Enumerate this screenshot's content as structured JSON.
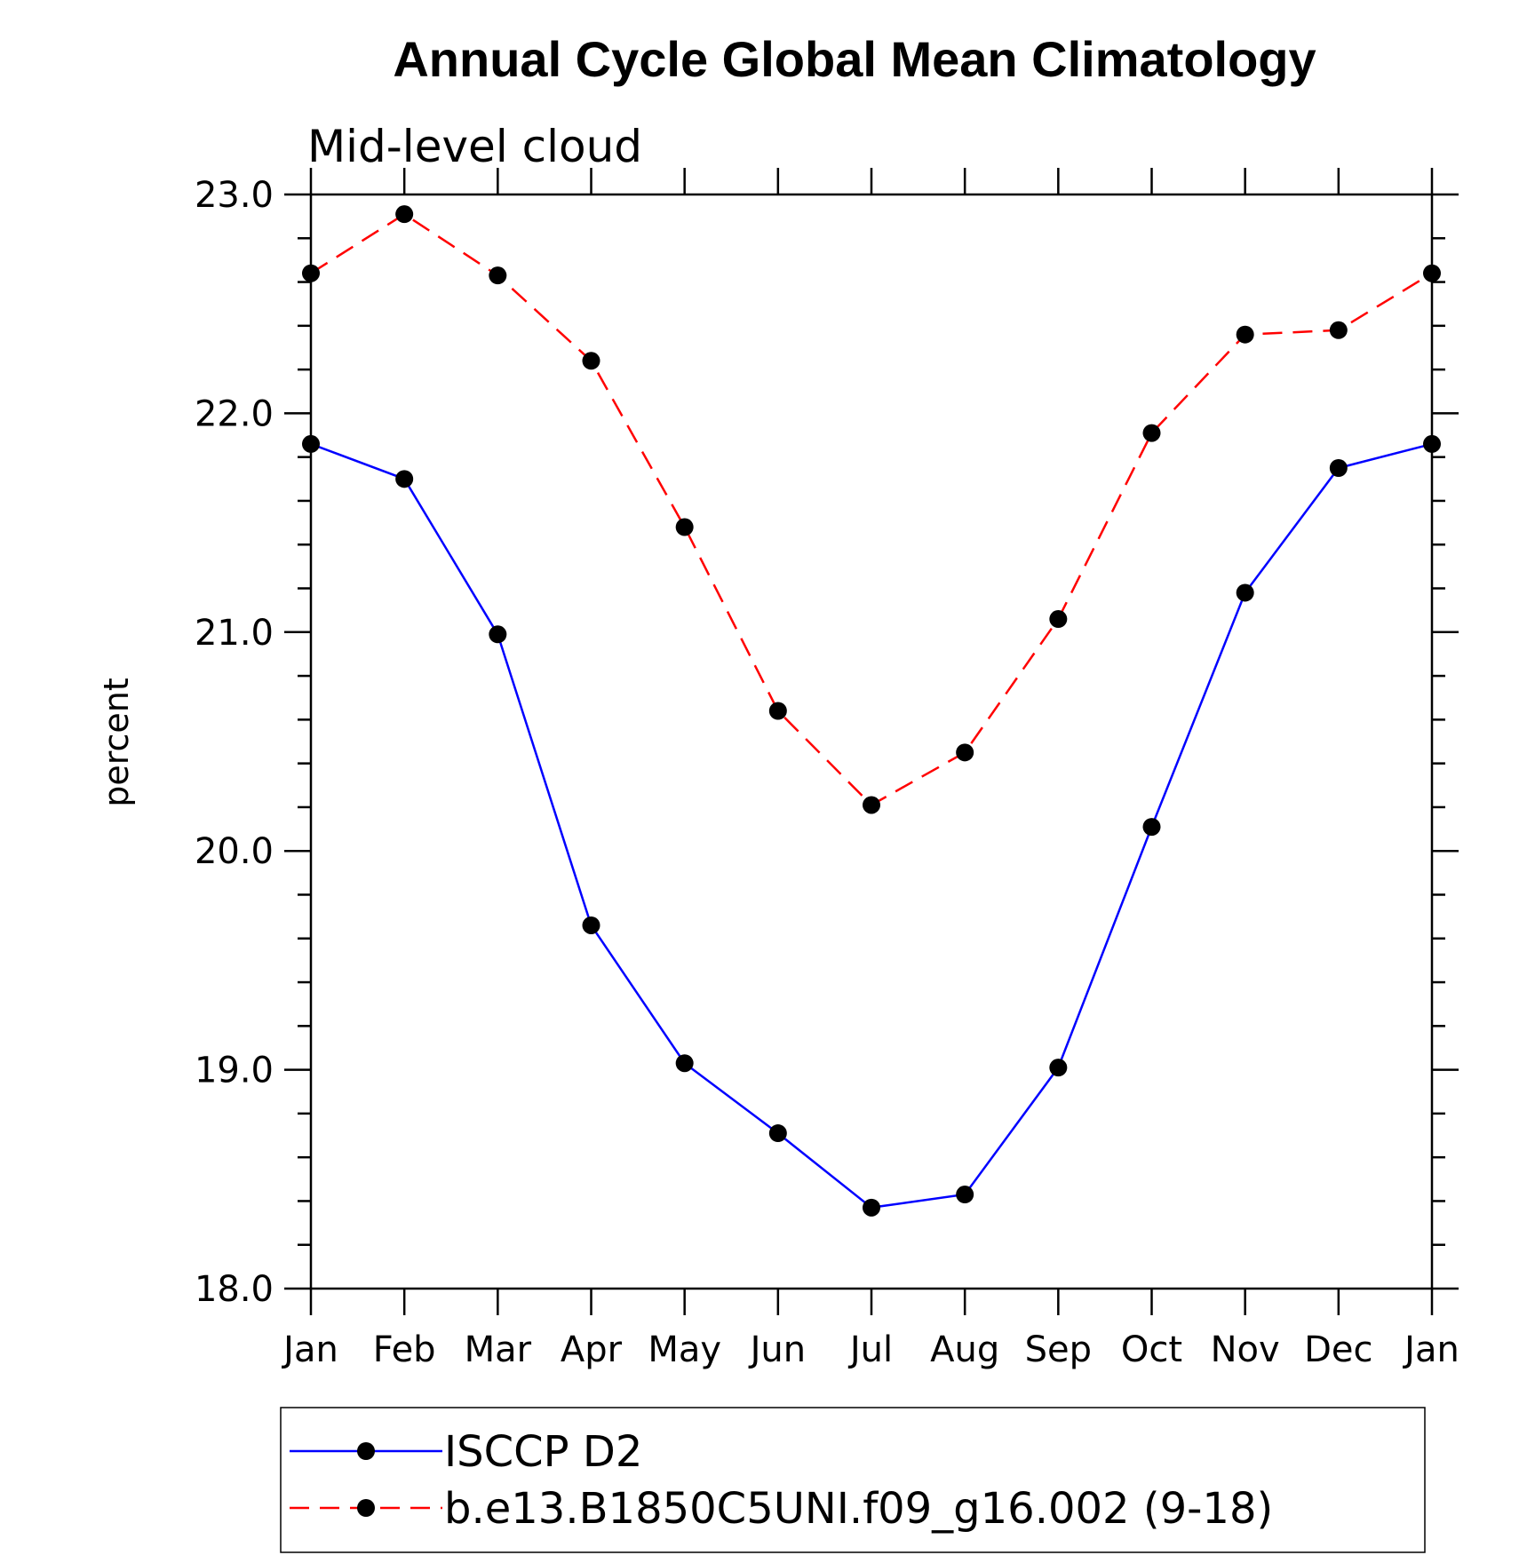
{
  "chart_data": {
    "type": "line",
    "title": "Annual Cycle Global Mean Climatology",
    "subtitle": "Mid-level cloud",
    "xlabel": "",
    "ylabel": "percent",
    "categories": [
      "Jan",
      "Feb",
      "Mar",
      "Apr",
      "May",
      "Jun",
      "Jul",
      "Aug",
      "Sep",
      "Oct",
      "Nov",
      "Dec",
      "Jan"
    ],
    "ylim": [
      18.0,
      23.0
    ],
    "yticks": [
      "18.0",
      "19.0",
      "20.0",
      "21.0",
      "22.0",
      "23.0"
    ],
    "grid": false,
    "legend_position": "bottom",
    "series": [
      {
        "name": "ISCCP D2",
        "color": "#0000ff",
        "line_style": "solid",
        "marker": "filled-circle",
        "values": [
          21.86,
          21.7,
          20.99,
          19.66,
          19.03,
          18.71,
          18.37,
          18.43,
          19.01,
          20.11,
          21.18,
          21.75,
          21.86
        ]
      },
      {
        "name": "b.e13.B1850C5UNI.f09_g16.002 (9-18)",
        "color": "#ff0000",
        "line_style": "dashed",
        "marker": "filled-circle",
        "values": [
          22.64,
          22.91,
          22.63,
          22.24,
          21.48,
          20.64,
          20.21,
          20.45,
          21.06,
          21.91,
          22.36,
          22.38,
          22.64
        ]
      }
    ]
  }
}
